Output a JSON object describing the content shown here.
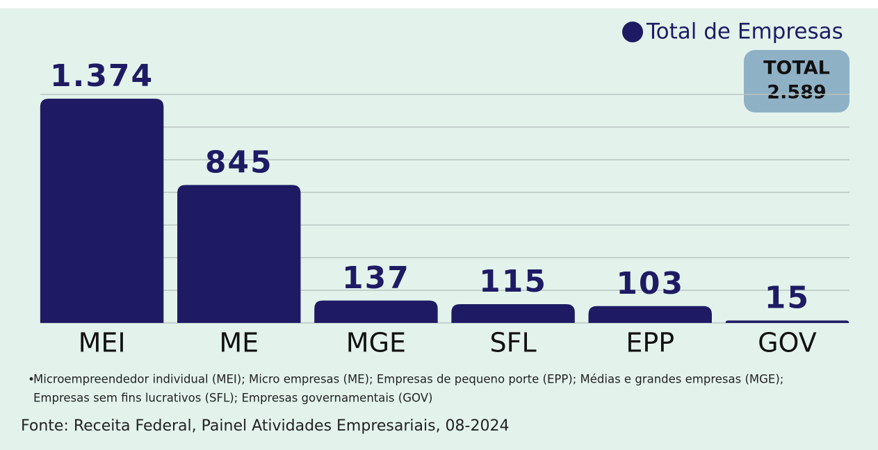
{
  "chart_data": {
    "type": "bar",
    "categories": [
      "MEI",
      "ME",
      "MGE",
      "SFL",
      "EPP",
      "GOV"
    ],
    "series": [
      {
        "name": "Total de Empresas",
        "color": "#1e1b64",
        "values": [
          1374,
          845,
          137,
          115,
          103,
          15
        ],
        "value_labels": [
          "1.374",
          "845",
          "137",
          "115",
          "103",
          "15"
        ]
      }
    ],
    "ylim": [
      0,
      1400
    ],
    "yticks": [
      0,
      200,
      400,
      600,
      800,
      1000,
      1200,
      1400
    ],
    "grid": true,
    "legend": "top-right",
    "total_box": {
      "label": "TOTAL",
      "value": "2.589"
    },
    "footnote": [
      "Microempreendedor individual (MEI); Micro empresas (ME); Empresas de pequeno porte (EPP); Médias e grandes empresas (MGE);",
      "Empresas sem fins lucrativos (SFL); Empresas governamentais (GOV)"
    ],
    "source": "Fonte: Receita Federal, Painel Atividades Empresariais, 08-2024"
  }
}
